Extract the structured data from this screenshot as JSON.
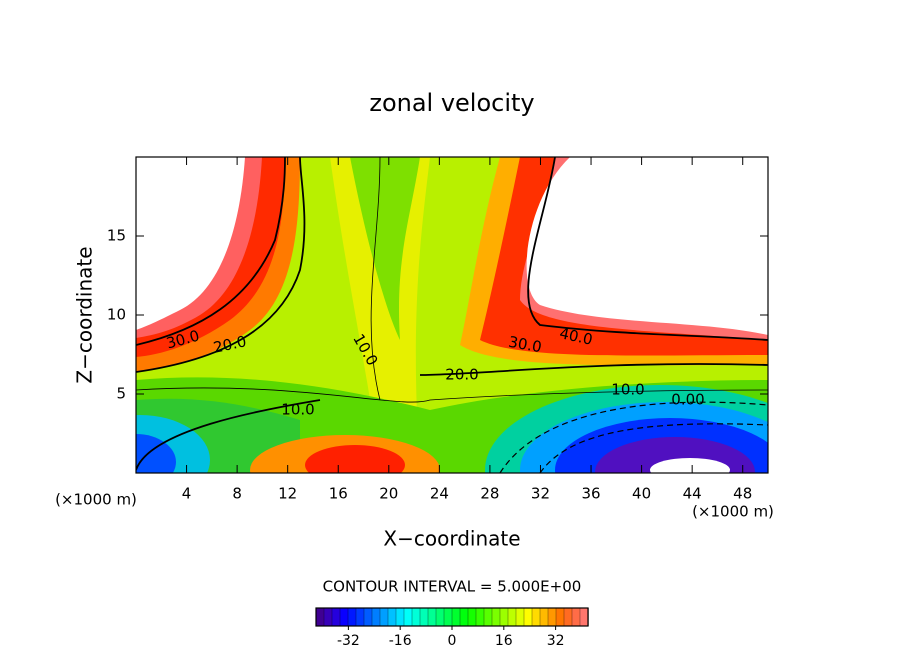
{
  "chart_data": {
    "type": "contour",
    "title": "zonal velocity",
    "xlabel": "X−coordinate",
    "ylabel": "Z−coordinate",
    "unit_labels": [
      "(×1000 m)",
      "(×1000 m)"
    ],
    "xlim": [
      0,
      50
    ],
    "xticks": [
      4,
      8,
      12,
      16,
      20,
      24,
      28,
      32,
      36,
      40,
      44,
      48
    ],
    "ylim": [
      0,
      20
    ],
    "yticks": [
      5,
      10,
      15
    ],
    "contour_labels": [
      "30.0",
      "20.0",
      "10.0",
      "20.0",
      "30.0",
      "40.0",
      "10.0",
      "0.00",
      "10.0"
    ],
    "contour_interval_label": "CONTOUR INTERVAL = 5.000E+00",
    "colorbar": {
      "lim": [
        -42,
        42
      ],
      "ticks": [
        -32,
        -16,
        0,
        16,
        32
      ]
    }
  }
}
